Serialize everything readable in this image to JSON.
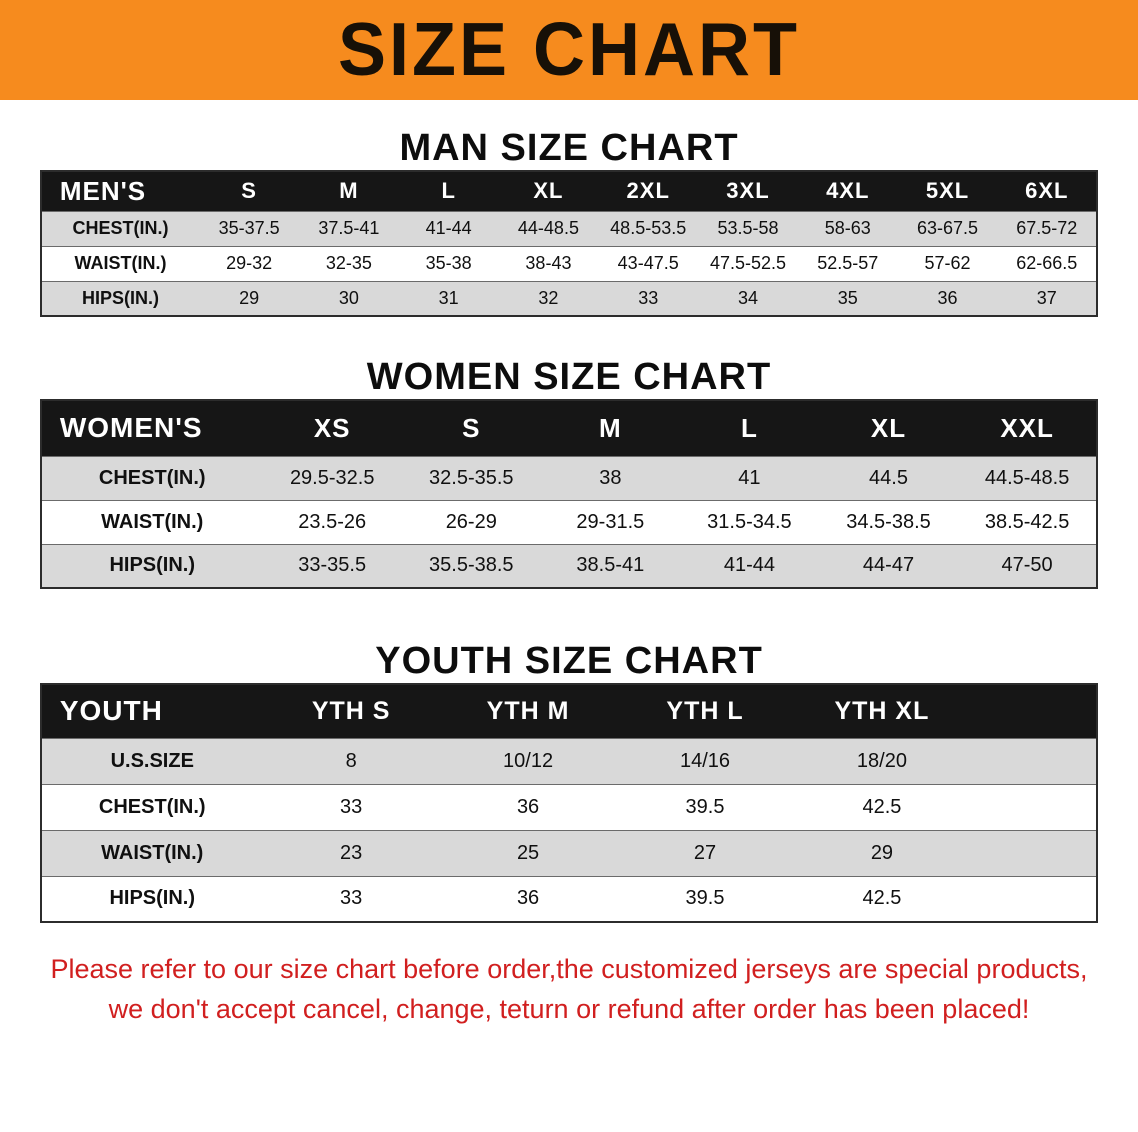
{
  "banner": {
    "title": "SIZE CHART"
  },
  "sections": {
    "men": {
      "heading": "MAN SIZE CHART"
    },
    "women": {
      "heading": "WOMEN SIZE CHART"
    },
    "youth": {
      "heading": "YOUTH SIZE CHART"
    }
  },
  "men_table": {
    "corner": "MEN'S",
    "sizes": [
      "S",
      "M",
      "L",
      "XL",
      "2XL",
      "3XL",
      "4XL",
      "5XL",
      "6XL"
    ],
    "rows": [
      {
        "label": "CHEST(IN.)",
        "values": [
          "35-37.5",
          "37.5-41",
          "41-44",
          "44-48.5",
          "48.5-53.5",
          "53.5-58",
          "58-63",
          "63-67.5",
          "67.5-72"
        ]
      },
      {
        "label": "WAIST(IN.)",
        "values": [
          "29-32",
          "32-35",
          "35-38",
          "38-43",
          "43-47.5",
          "47.5-52.5",
          "52.5-57",
          "57-62",
          "62-66.5"
        ]
      },
      {
        "label": "HIPS(IN.)",
        "values": [
          "29",
          "30",
          "31",
          "32",
          "33",
          "34",
          "35",
          "36",
          "37"
        ]
      }
    ]
  },
  "women_table": {
    "corner": "WOMEN'S",
    "sizes": [
      "XS",
      "S",
      "M",
      "L",
      "XL",
      "XXL"
    ],
    "rows": [
      {
        "label": "CHEST(IN.)",
        "values": [
          "29.5-32.5",
          "32.5-35.5",
          "38",
          "41",
          "44.5",
          "44.5-48.5"
        ]
      },
      {
        "label": "WAIST(IN.)",
        "values": [
          "23.5-26",
          "26-29",
          "29-31.5",
          "31.5-34.5",
          "34.5-38.5",
          "38.5-42.5"
        ]
      },
      {
        "label": "HIPS(IN.)",
        "values": [
          "33-35.5",
          "35.5-38.5",
          "38.5-41",
          "41-44",
          "44-47",
          "47-50"
        ]
      }
    ]
  },
  "youth_table": {
    "corner": "YOUTH",
    "sizes": [
      "YTH S",
      "YTH M",
      "YTH L",
      "YTH XL"
    ],
    "rows": [
      {
        "label": "U.S.SIZE",
        "values": [
          "8",
          "10/12",
          "14/16",
          "18/20"
        ]
      },
      {
        "label": "CHEST(IN.)",
        "values": [
          "33",
          "36",
          "39.5",
          "42.5"
        ]
      },
      {
        "label": "WAIST(IN.)",
        "values": [
          "23",
          "25",
          "27",
          "29"
        ]
      },
      {
        "label": "HIPS(IN.)",
        "values": [
          "33",
          "36",
          "39.5",
          "42.5"
        ]
      }
    ]
  },
  "footer": {
    "lines": [
      "Please refer to our size chart before order,the customized jerseys are special products,",
      "we don't accept cancel, change, teturn or refund after order has been placed!"
    ]
  },
  "colors": {
    "banner_bg": "#f68b1e",
    "banner_text": "#171007",
    "table_header_bg": "#161616",
    "table_header_text": "#ffffff",
    "row_stripe": "#d9d9d9",
    "footer_text": "#d11f1f"
  }
}
